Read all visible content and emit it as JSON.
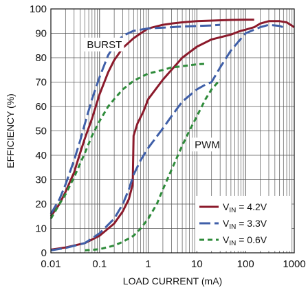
{
  "chart_data": {
    "type": "line",
    "xlabel": "LOAD CURRENT (mA)",
    "ylabel": "EFFICIENCY (%)",
    "xscale": "log",
    "xlim": [
      0.01,
      1000
    ],
    "ylim": [
      0,
      100
    ],
    "x_ticks": [
      0.01,
      0.1,
      1,
      10,
      100,
      1000
    ],
    "x_tick_labels": [
      "0.01",
      "0.1",
      "1",
      "10",
      "100",
      "1000"
    ],
    "y_ticks": [
      0,
      10,
      20,
      30,
      40,
      50,
      60,
      70,
      80,
      90,
      100
    ],
    "y_tick_labels": [
      "0",
      "10",
      "20",
      "30",
      "40",
      "50",
      "60",
      "70",
      "80",
      "90",
      "100"
    ],
    "grid": true,
    "legend_position": "bottom-right",
    "annotations": [
      {
        "text": "BURST",
        "x": 0.055,
        "y": 84
      },
      {
        "text": "PWM",
        "x": 9,
        "y": 43
      }
    ],
    "series": [
      {
        "name": "VIN = 4.2V",
        "color": "#8b1a2b",
        "dash": "solid",
        "mode": "BURST",
        "x": [
          0.01,
          0.015,
          0.02,
          0.03,
          0.04,
          0.05,
          0.07,
          0.1,
          0.15,
          0.2,
          0.3,
          0.5,
          0.7,
          1,
          2,
          3,
          5,
          10,
          20,
          50,
          100,
          150
        ],
        "y": [
          15,
          20,
          25,
          33,
          41,
          47,
          55,
          65,
          74,
          79,
          84,
          88,
          90,
          92,
          93.5,
          94,
          94.5,
          95,
          95.2,
          95.5,
          95.6,
          95.6
        ]
      },
      {
        "name": "VIN = 4.2V",
        "color": "#8b1a2b",
        "dash": "solid",
        "mode": "PWM",
        "x": [
          0.01,
          0.02,
          0.05,
          0.1,
          0.2,
          0.3,
          0.4,
          0.48,
          0.5,
          0.6,
          0.8,
          1,
          2,
          3,
          5,
          10,
          20,
          50,
          80,
          100,
          150,
          200,
          300,
          500,
          700,
          1000
        ],
        "y": [
          1.3,
          2.2,
          4,
          7,
          12,
          17,
          22,
          28,
          48,
          53,
          58,
          63,
          71,
          75,
          80,
          84.5,
          87.5,
          89.5,
          91,
          91.5,
          92.5,
          94,
          95,
          95,
          94.5,
          92.5
        ]
      },
      {
        "name": "VIN = 3.3V",
        "color": "#3f5fa8",
        "dash": "longdash",
        "mode": "BURST",
        "x": [
          0.01,
          0.015,
          0.02,
          0.03,
          0.04,
          0.05,
          0.07,
          0.1,
          0.15,
          0.2,
          0.3,
          0.5,
          0.7,
          1,
          2,
          3,
          5,
          10,
          20,
          30
        ],
        "y": [
          16,
          22,
          28,
          38,
          46,
          53,
          63,
          72,
          81,
          85,
          89,
          91,
          91.5,
          92,
          92.3,
          92.5,
          92.8,
          93,
          93.2,
          93.5
        ]
      },
      {
        "name": "VIN = 3.3V",
        "color": "#3f5fa8",
        "dash": "longdash",
        "mode": "PWM",
        "x": [
          0.01,
          0.02,
          0.05,
          0.1,
          0.2,
          0.3,
          0.4,
          0.5,
          0.7,
          1,
          2,
          3,
          5,
          10,
          15,
          20,
          30,
          50,
          100,
          200,
          300,
          500,
          700
        ],
        "y": [
          1,
          2,
          4,
          8,
          14,
          20,
          26,
          32,
          38,
          43,
          51,
          56,
          62,
          67,
          69,
          70,
          76,
          83,
          90,
          92.5,
          93.5,
          93,
          92
        ]
      },
      {
        "name": "VIN = 0.6V",
        "color": "#2e8b3a",
        "dash": "shortdash",
        "mode": "BURST",
        "x": [
          0.01,
          0.015,
          0.02,
          0.03,
          0.05,
          0.07,
          0.1,
          0.15,
          0.2,
          0.3,
          0.5,
          0.7,
          1,
          2,
          3,
          5,
          10,
          15
        ],
        "y": [
          14,
          20,
          24,
          31,
          41,
          48,
          54,
          60,
          63,
          67,
          70.5,
          72,
          73.5,
          75,
          76,
          76.5,
          77.3,
          77.5
        ]
      },
      {
        "name": "VIN = 0.6V",
        "color": "#2e8b3a",
        "dash": "shortdash",
        "mode": "PWM",
        "x": [
          0.05,
          0.1,
          0.2,
          0.3,
          0.5,
          0.7,
          1,
          1.5,
          2,
          3,
          5,
          7,
          10,
          15,
          20,
          30
        ],
        "y": [
          1,
          1.5,
          3,
          4.5,
          7,
          10,
          14,
          20,
          26,
          34,
          44,
          50,
          56,
          63,
          67,
          71
        ]
      }
    ],
    "legend": [
      {
        "label_main": "V",
        "label_sub": "IN",
        "label_rest": " = 4.2V",
        "color": "#8b1a2b",
        "dash": "solid"
      },
      {
        "label_main": "V",
        "label_sub": "IN",
        "label_rest": " = 3.3V",
        "color": "#3f5fa8",
        "dash": "longdash"
      },
      {
        "label_main": "V",
        "label_sub": "IN",
        "label_rest": " = 0.6V",
        "color": "#2e8b3a",
        "dash": "shortdash"
      }
    ]
  }
}
